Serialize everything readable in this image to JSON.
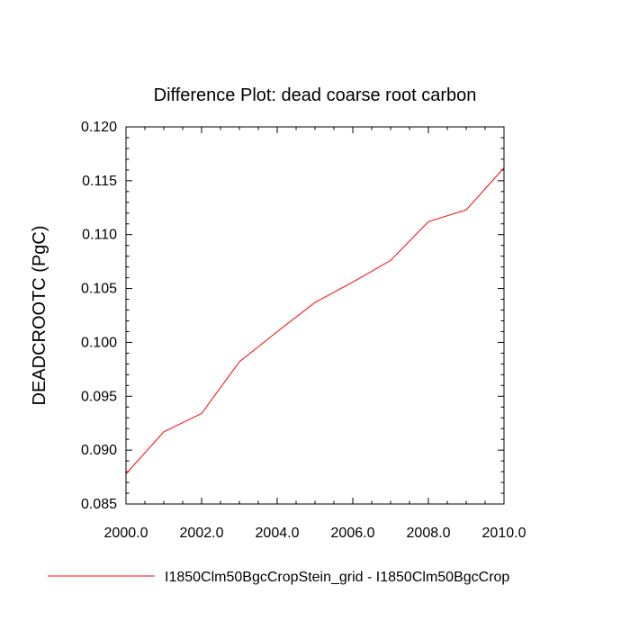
{
  "chart_data": {
    "type": "line",
    "title": "Difference Plot: dead coarse root carbon",
    "xlabel": "",
    "ylabel": "DEADCROOTC  (PgC)",
    "xlim": [
      2000,
      2010
    ],
    "ylim": [
      0.085,
      0.12
    ],
    "x_ticks": [
      2000,
      2002,
      2004,
      2006,
      2008,
      2010
    ],
    "x_tick_labels": [
      "2000.0",
      "2002.0",
      "2004.0",
      "2006.0",
      "2008.0",
      "2010.0"
    ],
    "y_ticks": [
      0.085,
      0.09,
      0.095,
      0.1,
      0.105,
      0.11,
      0.115,
      0.12
    ],
    "y_tick_labels": [
      "0.085",
      "0.090",
      "0.095",
      "0.100",
      "0.105",
      "0.110",
      "0.115",
      "0.120"
    ],
    "grid": false,
    "legend_position": "bottom",
    "series": [
      {
        "name": "I1850Clm50BgcCropStein_grid - I1850Clm50BgcCrop",
        "color": "#ff0000",
        "x": [
          2000,
          2001,
          2002,
          2003,
          2004,
          2005,
          2006,
          2007,
          2008,
          2009,
          2010
        ],
        "y": [
          0.0878,
          0.0917,
          0.0934,
          0.0982,
          0.101,
          0.1037,
          0.1056,
          0.1076,
          0.1112,
          0.1123,
          0.1162
        ]
      }
    ]
  }
}
